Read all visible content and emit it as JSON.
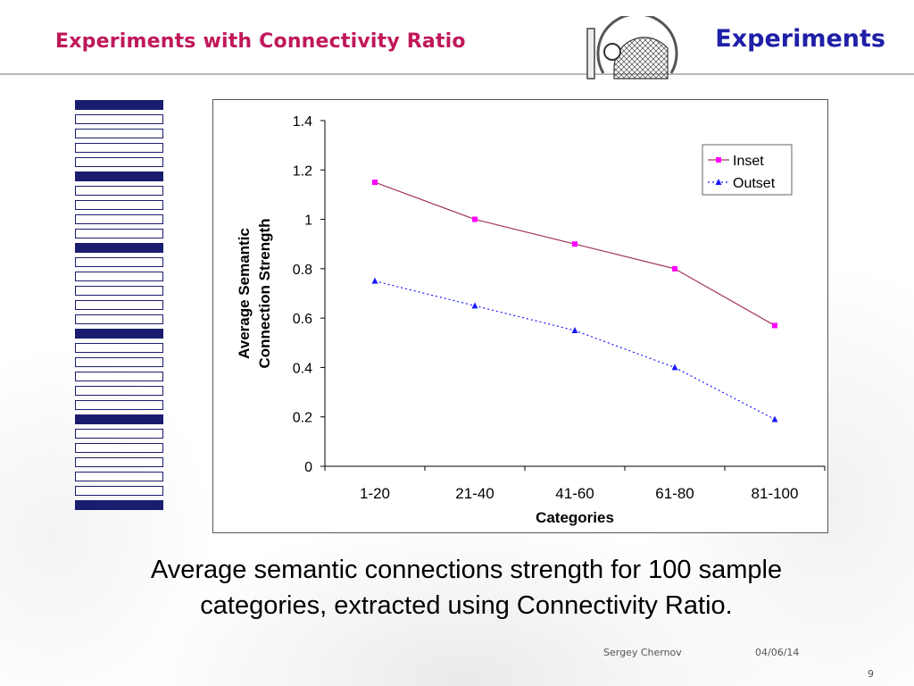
{
  "slide": {
    "title": "Experiments with Connectivity Ratio",
    "section": "Experiments",
    "caption": "Average semantic connections strength for 100 sample categories, extracted using Connectivity Ratio.",
    "footer": {
      "author": "Sergey Chernov",
      "date": "04/06/14",
      "page": "9"
    }
  },
  "colors": {
    "title": "#c0185a",
    "section": "#1f1fa8",
    "sidebar": "#1a1d6e",
    "inset": "#a33a5a",
    "inset_marker": "#ff00ff",
    "outset": "#1a1aff"
  },
  "sidebar": {
    "pattern": [
      "dark",
      "light",
      "light",
      "light",
      "light",
      "dark",
      "light",
      "light",
      "light",
      "light",
      "dark",
      "light",
      "light",
      "light",
      "light",
      "light",
      "dark",
      "light",
      "light",
      "light",
      "light",
      "light",
      "dark",
      "light",
      "light",
      "light",
      "light",
      "light",
      "dark"
    ]
  },
  "chart_data": {
    "type": "line",
    "title": "",
    "xlabel": "Categories",
    "ylabel": "Average Semantic Connection Strength",
    "categories": [
      "1-20",
      "21-40",
      "41-60",
      "61-80",
      "81-100"
    ],
    "ylim": [
      0,
      1.4
    ],
    "yticks": [
      "0",
      "0.2",
      "0.4",
      "0.6",
      "0.8",
      "1",
      "1.2",
      "1.4"
    ],
    "grid": false,
    "legend": "top-right",
    "series": [
      {
        "name": "Inset",
        "values": [
          1.15,
          1.0,
          0.9,
          0.8,
          0.57
        ],
        "marker": "square",
        "line": "solid"
      },
      {
        "name": "Outset",
        "values": [
          0.75,
          0.65,
          0.55,
          0.4,
          0.19
        ],
        "marker": "triangle",
        "line": "dotted"
      }
    ]
  }
}
